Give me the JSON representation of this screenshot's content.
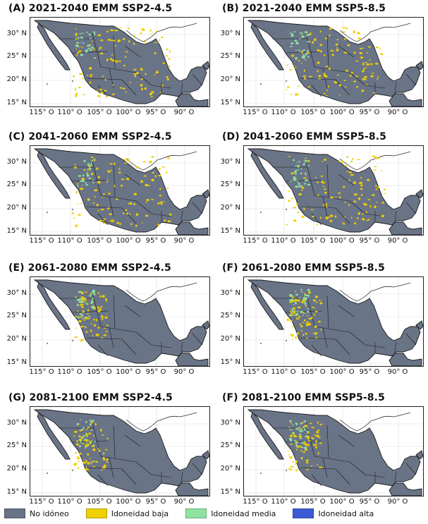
{
  "panels": [
    {
      "title": "(A) 2021-2040 EMM SSP2-4.5"
    },
    {
      "title": "(B) 2021-2040 EMM SSP5-8.5"
    },
    {
      "title": "(C) 2041-2060 EMM SSP2-4.5"
    },
    {
      "title": "(D) 2041-2060 EMM SSP5-8.5"
    },
    {
      "title": "(E) 2061-2080 EMM SSP2-4.5"
    },
    {
      "title": "(F) 2061-2080 EMM SSP5-8.5"
    },
    {
      "title": "(G) 2081-2100 EMM SSP2-4.5"
    },
    {
      "title": "(F) 2081-2100 EMM SSP5-8.5"
    }
  ],
  "axes": {
    "y_ticks": [
      "30° N",
      "25° N",
      "20° N",
      "15° N"
    ],
    "x_ticks": [
      "115° O",
      "110° O",
      "105° O",
      "100° O",
      "95° O",
      "90° O"
    ]
  },
  "legend": [
    {
      "label": "No idóneo",
      "color": "#6a7487"
    },
    {
      "label": "Idoneidad baja",
      "color": "#f0d000"
    },
    {
      "label": "Idoneidad media",
      "color": "#8fe3a0"
    },
    {
      "label": "Idoneidad alta",
      "color": "#3b5bd6"
    }
  ],
  "colors": {
    "land": "#6a7487",
    "border": "#1b1b1b",
    "ocean": "#ffffff",
    "grid": "#dcdcdc"
  }
}
